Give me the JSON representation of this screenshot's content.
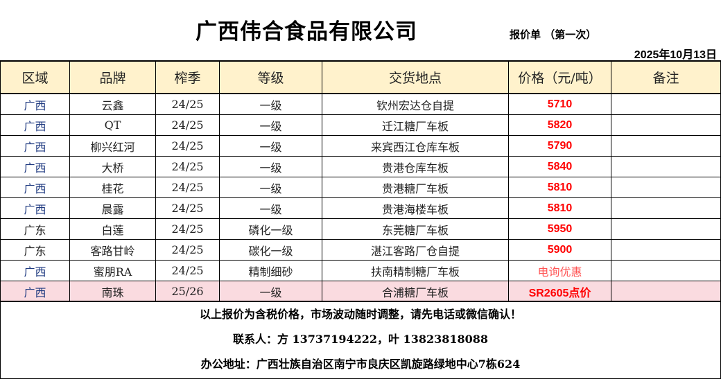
{
  "header": {
    "title": "广西伟合食品有限公司",
    "subtitle": "报价单  （第一次）",
    "date": "2025年10月13日"
  },
  "table": {
    "columns": [
      "区域",
      "品牌",
      "榨季",
      "等级",
      "交货地点",
      "价格（元/吨）",
      "备注"
    ],
    "rows": [
      {
        "region": "广西",
        "brand": "云鑫",
        "season": "24/25",
        "grade": "一级",
        "location": "钦州宏达仓自提",
        "price": "5710",
        "note": ""
      },
      {
        "region": "广西",
        "brand": "QT",
        "season": "24/25",
        "grade": "一级",
        "location": "迁江糖厂车板",
        "price": "5820",
        "note": ""
      },
      {
        "region": "广西",
        "brand": "柳兴红河",
        "season": "24/25",
        "grade": "一级",
        "location": "来宾西江仓库车板",
        "price": "5790",
        "note": ""
      },
      {
        "region": "广西",
        "brand": "大桥",
        "season": "24/25",
        "grade": "一级",
        "location": "贵港仓库车板",
        "price": "5840",
        "note": ""
      },
      {
        "region": "广西",
        "brand": "桂花",
        "season": "24/25",
        "grade": "一级",
        "location": "贵港糖厂车板",
        "price": "5810",
        "note": ""
      },
      {
        "region": "广西",
        "brand": "晨露",
        "season": "24/25",
        "grade": "一级",
        "location": "贵港海楼车板",
        "price": "5810",
        "note": ""
      },
      {
        "region": "广东",
        "brand": "白莲",
        "season": "24/25",
        "grade": "磷化一级",
        "location": "东莞糖厂车板",
        "price": "5950",
        "note": ""
      },
      {
        "region": "广东",
        "brand": "客路甘岭",
        "season": "24/25",
        "grade": "碳化一级",
        "location": "湛江客路厂仓自提",
        "price": "5900",
        "note": ""
      },
      {
        "region": "广西",
        "brand": "蜜朋RA",
        "season": "24/25",
        "grade": "精制细砂",
        "location": "扶南精制糖厂车板",
        "price": "电询优惠",
        "note": ""
      },
      {
        "region": "广西",
        "brand": "南珠",
        "season": "25/26",
        "grade": "一级",
        "location": "合浦糖厂车板",
        "price": "SR2605点价",
        "note": ""
      }
    ]
  },
  "footer": {
    "notice": "以上报价为含税价格，市场波动随时调整，请先电话或微信确认！",
    "contact": "联系人：方 13737194222，叶 13823818088",
    "address": "办公地址：广西壮族自治区南宁市良庆区凯旋路绿地中心7栋624"
  },
  "colors": {
    "header_bg": "#fff2cc",
    "highlight_row": "#fadbe0",
    "price": "#ff0000"
  }
}
